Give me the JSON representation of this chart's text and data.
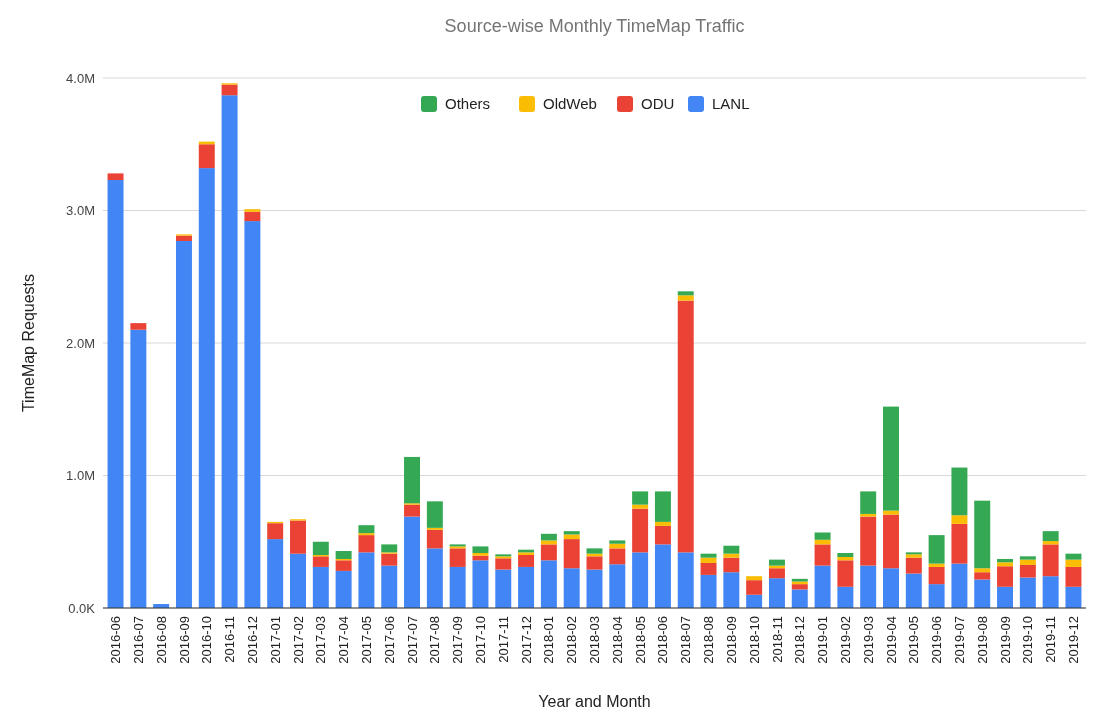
{
  "chart_data": {
    "type": "bar",
    "stacked": true,
    "title": "Source-wise Monthly TimeMap Traffic",
    "xlabel": "Year and Month",
    "ylabel": "TimeMap Requests",
    "categories": [
      "2016-06",
      "2016-07",
      "2016-08",
      "2016-09",
      "2016-10",
      "2016-11",
      "2016-12",
      "2017-01",
      "2017-02",
      "2017-03",
      "2017-04",
      "2017-05",
      "2017-06",
      "2017-07",
      "2017-08",
      "2017-09",
      "2017-10",
      "2017-11",
      "2017-12",
      "2018-01",
      "2018-02",
      "2018-03",
      "2018-04",
      "2018-05",
      "2018-06",
      "2018-07",
      "2018-08",
      "2018-09",
      "2018-10",
      "2018-11",
      "2018-12",
      "2019-01",
      "2019-02",
      "2019-03",
      "2019-04",
      "2019-05",
      "2019-06",
      "2019-07",
      "2019-08",
      "2019-09",
      "2019-10",
      "2019-11",
      "2019-12"
    ],
    "series": [
      {
        "name": "LANL",
        "color": "#4285f4",
        "values": [
          3230000,
          2100000,
          30000,
          2770000,
          3320000,
          3870000,
          2920000,
          520000,
          410000,
          310000,
          280000,
          420000,
          320000,
          690000,
          450000,
          310000,
          360000,
          290000,
          310000,
          360000,
          300000,
          290000,
          330000,
          420000,
          480000,
          420000,
          250000,
          270000,
          100000,
          225000,
          140000,
          320000,
          160000,
          320000,
          300000,
          260000,
          180000,
          335000,
          215000,
          160000,
          230000,
          240000,
          160000
        ]
      },
      {
        "name": "ODU",
        "color": "#ea4335",
        "values": [
          50000,
          50000,
          0,
          40000,
          180000,
          80000,
          70000,
          120000,
          250000,
          80000,
          80000,
          130000,
          90000,
          90000,
          140000,
          140000,
          35000,
          85000,
          90000,
          120000,
          220000,
          100000,
          120000,
          330000,
          140000,
          1900000,
          90000,
          110000,
          110000,
          75000,
          40000,
          160000,
          200000,
          370000,
          405000,
          120000,
          130000,
          300000,
          55000,
          155000,
          95000,
          240000,
          150000
        ]
      },
      {
        "name": "OldWeb",
        "color": "#fbbc04",
        "values": [
          0,
          0,
          0,
          10000,
          20000,
          10000,
          20000,
          10000,
          10000,
          10000,
          10000,
          15000,
          10000,
          10000,
          15000,
          15000,
          20000,
          15000,
          20000,
          30000,
          35000,
          20000,
          35000,
          30000,
          30000,
          40000,
          40000,
          30000,
          30000,
          20000,
          20000,
          35000,
          25000,
          20000,
          30000,
          25000,
          25000,
          65000,
          30000,
          30000,
          40000,
          25000,
          55000
        ]
      },
      {
        "name": "Others",
        "color": "#34a853",
        "values": [
          0,
          0,
          0,
          0,
          0,
          0,
          0,
          0,
          0,
          100000,
          60000,
          60000,
          60000,
          350000,
          200000,
          15000,
          50000,
          15000,
          20000,
          50000,
          25000,
          40000,
          25000,
          100000,
          230000,
          30000,
          30000,
          60000,
          0,
          45000,
          20000,
          55000,
          30000,
          170000,
          785000,
          15000,
          215000,
          360000,
          510000,
          25000,
          25000,
          75000,
          45000
        ]
      }
    ],
    "ylim": [
      0,
      4000000
    ],
    "yticks": [
      {
        "value": 0,
        "label": "0.0K"
      },
      {
        "value": 1000000,
        "label": "1.0M"
      },
      {
        "value": 2000000,
        "label": "2.0M"
      },
      {
        "value": 3000000,
        "label": "3.0M"
      },
      {
        "value": 4000000,
        "label": "4.0M"
      }
    ],
    "grid": "y",
    "legend": "top"
  }
}
